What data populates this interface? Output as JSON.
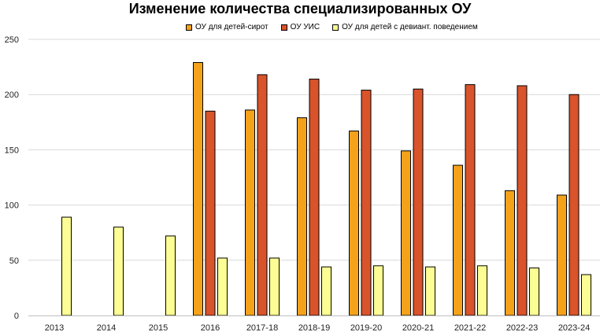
{
  "chart_data": {
    "type": "bar",
    "title": "Изменение количества специализированных ОУ",
    "categories": [
      "2013",
      "2014",
      "2015",
      "2016",
      "2017-18",
      "2018-19",
      "2019-20",
      "2020-21",
      "2021-22",
      "2022-23",
      "2023-24"
    ],
    "series": [
      {
        "name": "ОУ для детей-сирот",
        "color": "#f5a21b",
        "values": [
          null,
          null,
          null,
          229,
          186,
          179,
          167,
          149,
          136,
          113,
          109
        ]
      },
      {
        "name": "ОУ УИС",
        "color": "#d9532b",
        "values": [
          null,
          null,
          null,
          185,
          218,
          214,
          204,
          205,
          209,
          208,
          200
        ]
      },
      {
        "name": "ОУ для детей с девиант. поведением",
        "color": "#fdfd96",
        "values": [
          89,
          80,
          72,
          52,
          52,
          44,
          45,
          44,
          45,
          43,
          37
        ]
      }
    ],
    "ylim": [
      0,
      250
    ],
    "yticks": [
      0,
      50,
      100,
      150,
      200,
      250
    ],
    "grid": true,
    "legend": "top"
  }
}
